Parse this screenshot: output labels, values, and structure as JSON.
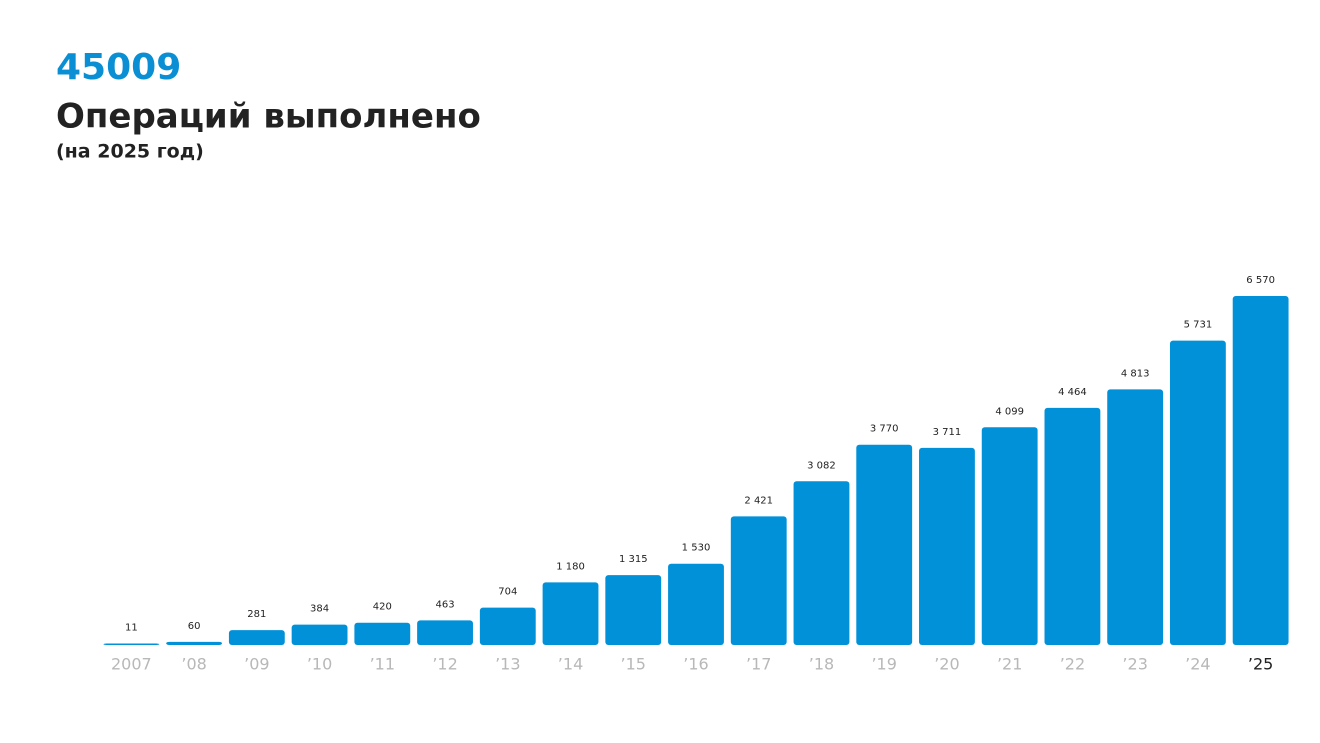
{
  "chart_data": {
    "type": "bar",
    "headline": "45009",
    "title": "Операций выполнено",
    "subtitle": "(на 2025 год)",
    "categories": [
      "2007",
      "’08",
      "’09",
      "’10",
      "’11",
      "’12",
      "’13",
      "’14",
      "’15",
      "’16",
      "’17",
      "’18",
      "’19",
      "’20",
      "’21",
      "’22",
      "’23",
      "’24",
      "’25"
    ],
    "values": [
      11,
      60,
      281,
      384,
      420,
      463,
      704,
      1180,
      1315,
      1530,
      2421,
      3082,
      3770,
      3711,
      4099,
      4464,
      4813,
      5731,
      6570
    ],
    "value_labels": [
      "11",
      "60",
      "281",
      "384",
      "420",
      "463",
      "704",
      "1 180",
      "1 315",
      "1 530",
      "2 421",
      "3 082",
      "3 770",
      "3 711",
      "4 099",
      "4 464",
      "4 813",
      "5 731",
      "6 570"
    ],
    "color": "#0091d9"
  }
}
